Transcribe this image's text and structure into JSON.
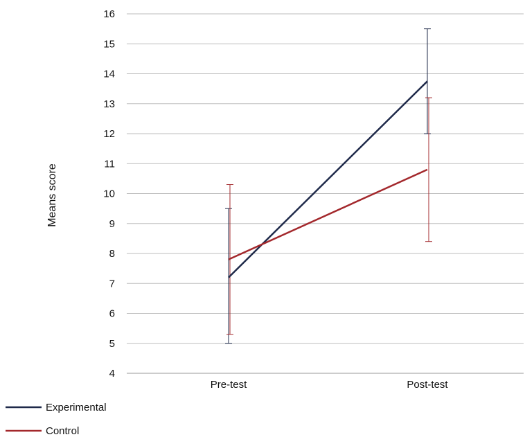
{
  "chart_data": {
    "type": "line",
    "title": "",
    "xlabel": "",
    "ylabel": "Means score",
    "categories": [
      "Pre-test",
      "Post-test"
    ],
    "ylim": [
      4,
      16
    ],
    "yticks": [
      4,
      5,
      6,
      7,
      8,
      9,
      10,
      11,
      12,
      13,
      14,
      15,
      16
    ],
    "grid": true,
    "legend_position": "bottom-left",
    "series": [
      {
        "name": "Experimental",
        "color": "#1f2a4a",
        "values": [
          7.2,
          13.75
        ],
        "error_low": [
          5.0,
          12.0
        ],
        "error_high": [
          9.5,
          15.5
        ]
      },
      {
        "name": "Control",
        "color": "#a3282c",
        "values": [
          7.8,
          10.8
        ],
        "error_low": [
          5.3,
          8.4
        ],
        "error_high": [
          10.3,
          13.2
        ]
      }
    ]
  }
}
